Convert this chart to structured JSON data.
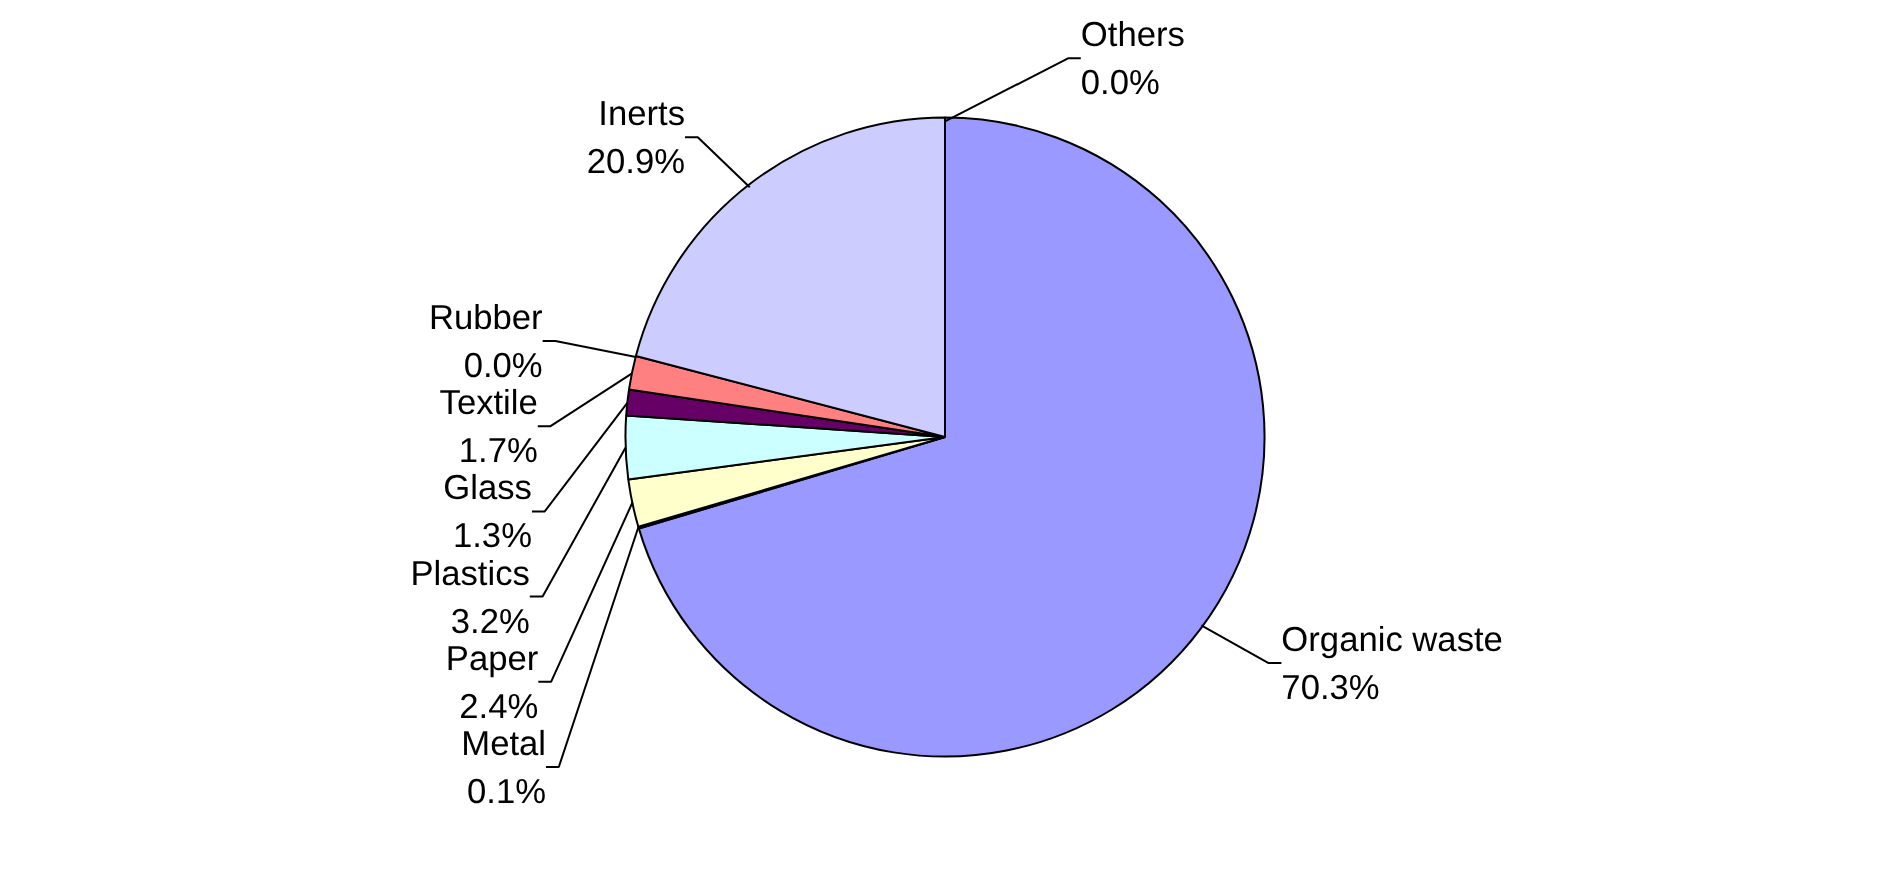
{
  "chart_data": {
    "type": "pie",
    "categories": [
      "Organic waste",
      "Metal",
      "Paper",
      "Plastics",
      "Glass",
      "Textile",
      "Rubber",
      "Inerts",
      "Others"
    ],
    "values": [
      70.3,
      0.1,
      2.4,
      3.2,
      1.3,
      1.7,
      0.0,
      20.9,
      0.0
    ],
    "colors": [
      "#9999ff",
      "#993366",
      "#ffffcc",
      "#ccffff",
      "#660066",
      "#ff8080",
      "#0066cc",
      "#ccccff",
      "#000080"
    ],
    "value_labels": [
      "70.3%",
      "0.1%",
      "2.4%",
      "3.2%",
      "1.3%",
      "1.7%",
      "0.0%",
      "20.9%",
      "0.0%"
    ]
  }
}
